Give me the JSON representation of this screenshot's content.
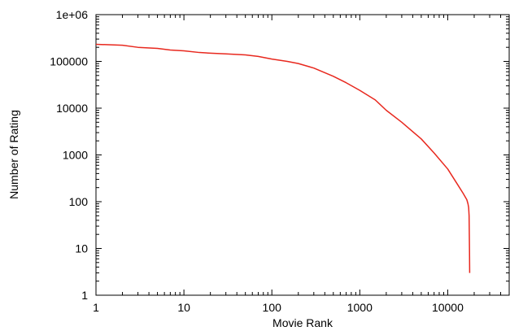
{
  "chart_data": {
    "type": "line",
    "title": "",
    "xlabel": "Movie Rank",
    "ylabel": "Number of Rating",
    "xscale": "log",
    "yscale": "log",
    "xlim": [
      1,
      50000
    ],
    "ylim": [
      1,
      1000000
    ],
    "x_ticks": [
      {
        "value": 1,
        "label": "1"
      },
      {
        "value": 10,
        "label": "10"
      },
      {
        "value": 100,
        "label": "100"
      },
      {
        "value": 1000,
        "label": "1000"
      },
      {
        "value": 10000,
        "label": "10000"
      }
    ],
    "y_ticks": [
      {
        "value": 1,
        "label": "1"
      },
      {
        "value": 10,
        "label": "10"
      },
      {
        "value": 100,
        "label": "100"
      },
      {
        "value": 1000,
        "label": "1000"
      },
      {
        "value": 10000,
        "label": "10000"
      },
      {
        "value": 100000,
        "label": "100000"
      },
      {
        "value": 1000000,
        "label": "1e+06"
      }
    ],
    "grid": false,
    "legend": "none",
    "series": [
      {
        "color": "#e8281e",
        "x": [
          1,
          2,
          3,
          5,
          7,
          10,
          15,
          20,
          30,
          50,
          70,
          100,
          150,
          200,
          300,
          500,
          700,
          1000,
          1500,
          2000,
          3000,
          5000,
          7000,
          10000,
          13000,
          15000,
          16500,
          17000,
          17300,
          17500,
          17600,
          17700,
          17770
        ],
        "y": [
          232000,
          222000,
          200000,
          190000,
          175000,
          168000,
          155000,
          150000,
          145000,
          138000,
          128000,
          112000,
          100000,
          90000,
          72000,
          48000,
          35000,
          24000,
          15000,
          9000,
          5000,
          2200,
          1100,
          500,
          230,
          150,
          110,
          90,
          75,
          50,
          20,
          8,
          3
        ]
      }
    ]
  }
}
